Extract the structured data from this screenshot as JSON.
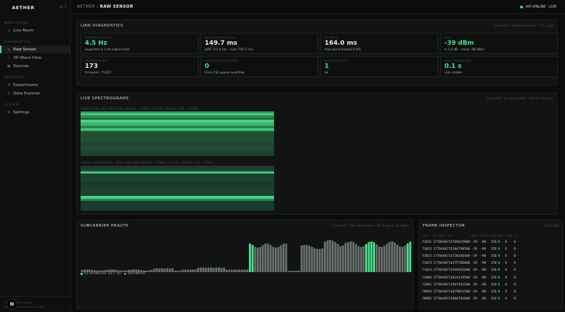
{
  "sidebar": {
    "brand": "AETHER",
    "version": "v0.2",
    "sections": [
      "MONITORING",
      "DIAGNOSTICS",
      "RESEARCH",
      "SYSTEM"
    ],
    "items": [
      {
        "label": "Live Room",
        "icon": "home-icon"
      },
      {
        "label": "Raw Sensor",
        "icon": "waveform-icon",
        "active": true
      },
      {
        "label": "3D Wave View",
        "icon": "cube-icon"
      },
      {
        "label": "Devices",
        "icon": "chip-icon"
      },
      {
        "label": "Experiments",
        "icon": "flask-icon"
      },
      {
        "label": "Data Explorer",
        "icon": "database-icon"
      },
      {
        "label": "Settings",
        "icon": "gear-icon"
      }
    ],
    "footer_lines": [
      "FIRST · NO CLOUD",
      "NOT FOR MEDICAL CLAIMS"
    ],
    "avatar_letter": "N"
  },
  "topbar": {
    "crumb_root": "AETHER /",
    "crumb_current": "RAW SENSOR",
    "api_status": "API ONLINE · LIVE"
  },
  "link": {
    "title": "LINK DIAGNOSTICS",
    "note": "[Sensed] · diagnostics/link · 1.5 s poll",
    "cards": [
      {
        "label": "OBSERVED RATE",
        "value": "4.5 Hz",
        "sub": "expected 4.3 Hz (observed)",
        "green": true
      },
      {
        "label": "INTER-ARRIVAL P50",
        "value": "149.7 ms",
        "sub": "p99 715.6 ms · max 795.7 ms",
        "green": false
      },
      {
        "label": "JITTER σ",
        "value": "164.0 ms",
        "sub": "first-word-invalid 0.0%",
        "green": false
      },
      {
        "label": "RSSI",
        "value": "-39 dBm",
        "sub": "σ 2.4 dB · noise -98 dBm",
        "green": true
      },
      {
        "label": "FRAMES SEEN",
        "value": "173",
        "sub": "firmware: 71021",
        "green": false
      },
      {
        "label": "FIRMWARE DROPPED",
        "value": "0",
        "sub": "from CSI queue overflow",
        "green": true
      },
      {
        "label": "QUEUE DEPTH",
        "value": "1",
        "sub": "ok",
        "green": true
      },
      {
        "label": "LAST FRAME AGE",
        "value": "0.1 s",
        "sub": "rate stable",
        "green": true
      }
    ]
  },
  "spectro": {
    "title": "LIVE SPECTROGRAMS",
    "note": "[Sensed] · ws connected · last 12 minutes",
    "amp_label": "AMPLITUDE (dB) (PER SUBCARRIER × TIME) (12×72, RANGE 0.00 – 12.88)",
    "phase_label": "PHASE (UNWRAPPED, STD) (PER SUBCARRIER × TIME) (10×72, RANGE 0.07 – 0.53)"
  },
  "health": {
    "title": "SUBCARRIER HEALTH",
    "note": "[Sensed] · 128 subcarriers · 16 dropped at edges",
    "legend_responsive": "RESPONSIVE SET (8)",
    "legend_dormant": "DORMANT",
    "colors": {
      "responsive": "#46e38a",
      "dormant": "#6a706d"
    }
  },
  "frames": {
    "title": "FRAME INSPECTOR",
    "note": "[Sensed]",
    "columns": [
      "SEQ",
      "TS_HOST_NS",
      "RSSI",
      "NOISE",
      "LEN",
      "FWI",
      "CHAN",
      "CS"
    ],
    "rows": [
      [
        "71041",
        "1778440715789635800",
        "-39",
        "-98",
        "256",
        "N",
        "6",
        "0"
      ],
      [
        "71033",
        "1778440715284798500",
        "-39",
        "-98",
        "256",
        "N",
        "6",
        "0"
      ],
      [
        "71023",
        "1778440714730266400",
        "-39",
        "-98",
        "256",
        "N",
        "6",
        "0"
      ],
      [
        "71019",
        "1778440714475706000",
        "-39",
        "-98",
        "256",
        "N",
        "6",
        "0"
      ],
      [
        "71016",
        "1778440714269461600",
        "-39",
        "-98",
        "256",
        "N",
        "6",
        "0"
      ],
      [
        "71008",
        "1778440713824319500",
        "-39",
        "-98",
        "256",
        "N",
        "6",
        "0"
      ],
      [
        "71001",
        "1778440713507942100",
        "-39",
        "-98",
        "256",
        "N",
        "6",
        "0"
      ],
      [
        "70994",
        "1778440713079841500",
        "-39",
        "-98",
        "256",
        "N",
        "6",
        "0"
      ],
      [
        "70985",
        "1778440712684782600",
        "-39",
        "-98",
        "256",
        "N",
        "6",
        "0"
      ]
    ]
  }
}
